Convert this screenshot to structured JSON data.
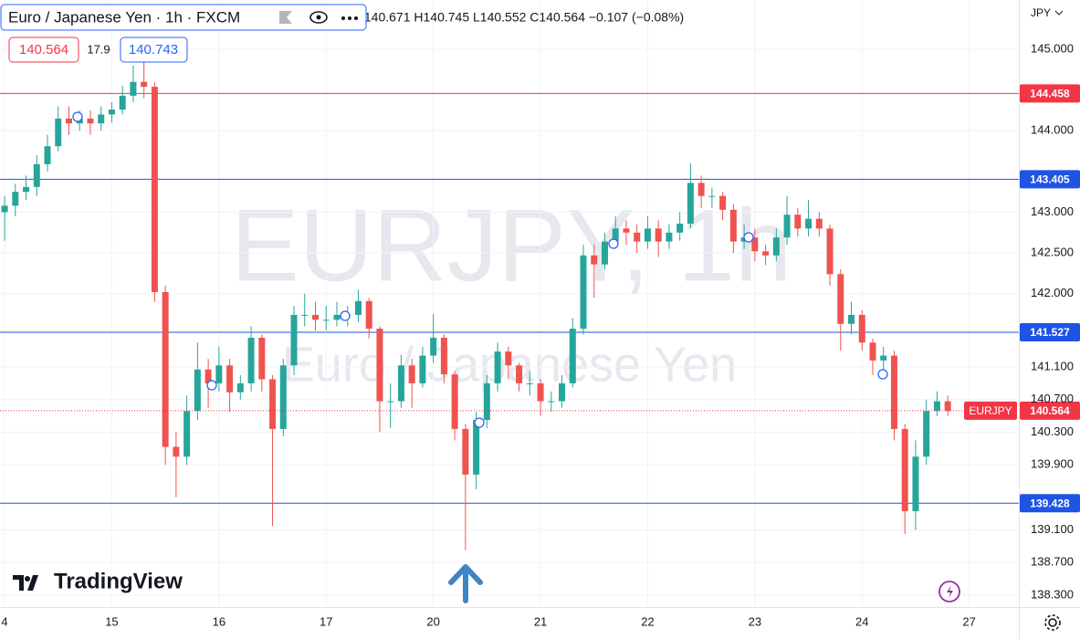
{
  "header": {
    "title": "Euro / Japanese Yen · 1h · FXCM",
    "ohlc": "O140.671 H140.745 L140.552 C140.564 −0.107 (−0.08%)",
    "sell": 140.564,
    "spread": 17.9,
    "buy": 140.743,
    "currency": "JPY",
    "watermark_symbol": "EURJPY, 1h",
    "watermark_name": "Euro / Japanese Yen",
    "logo": "TradingView"
  },
  "chart_data": {
    "type": "candlestick",
    "up_color": "#26a69a",
    "down_color": "#ef5350",
    "grid": true,
    "xlim": [
      -0.043,
      9.463
    ],
    "xticks": [
      {
        "value": 0,
        "label": "4"
      },
      {
        "value": 1,
        "label": "15"
      },
      {
        "value": 2,
        "label": "16"
      },
      {
        "value": 3,
        "label": "17"
      },
      {
        "value": 4,
        "label": "20"
      },
      {
        "value": 5,
        "label": "21"
      },
      {
        "value": 6,
        "label": "22"
      },
      {
        "value": 7,
        "label": "23"
      },
      {
        "value": 8,
        "label": "24"
      },
      {
        "value": 9,
        "label": "27"
      }
    ],
    "ylim": [
      138.154,
      145.605
    ],
    "yticks": [
      {
        "value": 145,
        "label": "145.000"
      },
      {
        "value": 144,
        "label": "144.000"
      },
      {
        "value": 143,
        "label": "143.000"
      },
      {
        "value": 142.5,
        "label": "142.500"
      },
      {
        "value": 142,
        "label": "142.000"
      },
      {
        "value": 141.1,
        "label": "141.100"
      },
      {
        "value": 140.7,
        "label": "140.700"
      },
      {
        "value": 140.3,
        "label": "140.300"
      },
      {
        "value": 139.9,
        "label": "139.900"
      },
      {
        "value": 139.1,
        "label": "139.100"
      },
      {
        "value": 138.7,
        "label": "138.700"
      },
      {
        "value": 138.3,
        "label": "138.300"
      }
    ],
    "levels": [
      {
        "value": 144.458,
        "color": "#f23645"
      },
      {
        "value": 143.405,
        "color": "#1e53e5"
      },
      {
        "value": 141.527,
        "color": "#1e53e5"
      },
      {
        "value": 139.428,
        "color": "#1e53e5"
      }
    ],
    "last_price": {
      "name": "EURJPY",
      "value": 140.564,
      "color": "#f23645"
    },
    "x": [
      0,
      0.1,
      0.2,
      0.3,
      0.4,
      0.5,
      0.6,
      0.7,
      0.8,
      0.9,
      1,
      1.1,
      1.2,
      1.3,
      1.4,
      1.5,
      1.6,
      1.7,
      1.8,
      1.9,
      2,
      2.1,
      2.2,
      2.3,
      2.4,
      2.5,
      2.6,
      2.7,
      2.8,
      2.9,
      3,
      3.1,
      3.2,
      3.3,
      3.4,
      3.5,
      3.6,
      3.7,
      3.8,
      3.9,
      4,
      4.1,
      4.2,
      4.3,
      4.4,
      4.5,
      4.6,
      4.7,
      4.8,
      4.9,
      5,
      5.1,
      5.2,
      5.3,
      5.4,
      5.5,
      5.6,
      5.7,
      5.8,
      5.9,
      6,
      6.1,
      6.2,
      6.3,
      6.4,
      6.5,
      6.6,
      6.7,
      6.8,
      6.9,
      7,
      7.1,
      7.2,
      7.3,
      7.4,
      7.5,
      7.6,
      7.7,
      7.8,
      7.9,
      8,
      8.1,
      8.2,
      8.3,
      8.4,
      8.5,
      8.6,
      8.7,
      8.8
    ],
    "open": [
      143.0,
      143.08,
      143.25,
      143.31,
      143.59,
      143.81,
      144.15,
      144.09,
      144.15,
      144.09,
      144.2,
      144.26,
      144.43,
      144.6,
      144.54,
      142.02,
      140.12,
      140.0,
      140.56,
      141.07,
      140.9,
      141.12,
      140.79,
      140.9,
      141.46,
      140.95,
      140.34,
      141.12,
      141.74,
      141.74,
      141.68,
      141.68,
      141.74,
      141.74,
      141.91,
      141.57,
      140.68,
      140.68,
      141.12,
      140.9,
      141.24,
      141.46,
      141.01,
      140.34,
      139.78,
      140.45,
      140.9,
      141.29,
      141.12,
      140.9,
      140.9,
      140.68,
      140.68,
      140.9,
      141.57,
      142.47,
      142.36,
      142.64,
      142.8,
      142.75,
      142.64,
      142.8,
      142.64,
      142.75,
      142.86,
      143.36,
      143.2,
      143.2,
      143.03,
      142.64,
      142.69,
      142.52,
      142.47,
      142.69,
      142.97,
      142.8,
      142.92,
      142.8,
      142.24,
      141.63,
      141.74,
      141.4,
      141.18,
      141.24,
      140.34,
      139.33,
      140.0,
      140.56,
      140.68
    ],
    "high": [
      143.2,
      143.35,
      143.45,
      143.7,
      143.95,
      144.3,
      144.3,
      144.25,
      144.25,
      144.3,
      144.35,
      144.55,
      144.8,
      144.85,
      144.6,
      142.1,
      140.3,
      140.75,
      141.4,
      141.2,
      141.35,
      141.2,
      141.0,
      141.6,
      141.5,
      141.0,
      141.2,
      141.85,
      142.0,
      141.9,
      141.85,
      141.9,
      141.85,
      142.05,
      141.95,
      141.6,
      140.9,
      141.25,
      141.2,
      141.35,
      141.75,
      141.5,
      141.05,
      140.4,
      140.55,
      141.0,
      141.4,
      141.35,
      141.15,
      141.05,
      140.95,
      140.8,
      141.0,
      141.7,
      142.6,
      142.6,
      142.75,
      142.95,
      142.9,
      142.85,
      142.95,
      142.9,
      142.85,
      143.0,
      143.6,
      143.45,
      143.3,
      143.25,
      143.1,
      142.85,
      142.8,
      142.6,
      142.8,
      143.2,
      143.05,
      143.15,
      143.0,
      142.85,
      142.3,
      141.9,
      141.8,
      141.45,
      141.35,
      141.3,
      140.4,
      140.2,
      140.7,
      140.8,
      140.75
    ],
    "low": [
      142.65,
      142.95,
      143.15,
      143.2,
      143.5,
      143.75,
      143.95,
      144.0,
      143.95,
      144.0,
      144.1,
      144.2,
      144.35,
      144.4,
      141.9,
      139.9,
      139.5,
      139.9,
      140.45,
      140.6,
      140.8,
      140.55,
      140.7,
      140.8,
      140.8,
      139.15,
      140.25,
      141.0,
      141.6,
      141.55,
      141.55,
      141.6,
      141.6,
      141.65,
      141.45,
      140.3,
      140.35,
      140.6,
      140.6,
      140.85,
      141.15,
      140.9,
      140.2,
      138.85,
      139.6,
      140.35,
      140.8,
      140.95,
      140.8,
      140.75,
      140.5,
      140.55,
      140.6,
      140.85,
      141.5,
      141.95,
      142.3,
      142.55,
      142.6,
      142.5,
      142.55,
      142.45,
      142.55,
      142.65,
      142.8,
      143.05,
      143.05,
      142.9,
      142.5,
      142.55,
      142.4,
      142.35,
      142.4,
      142.6,
      142.7,
      142.7,
      142.7,
      142.1,
      141.3,
      141.5,
      141.3,
      141.0,
      141.05,
      140.2,
      139.05,
      139.1,
      139.9,
      140.5,
      140.5
    ],
    "close": [
      143.08,
      143.25,
      143.31,
      143.59,
      143.81,
      144.15,
      144.09,
      144.15,
      144.09,
      144.2,
      144.26,
      144.43,
      144.6,
      144.54,
      142.02,
      140.12,
      140.0,
      140.56,
      141.07,
      140.9,
      141.12,
      140.79,
      140.9,
      141.46,
      140.95,
      140.34,
      141.12,
      141.74,
      141.74,
      141.68,
      141.68,
      141.74,
      141.74,
      141.91,
      141.57,
      140.68,
      140.68,
      141.12,
      140.9,
      141.24,
      141.46,
      141.01,
      140.34,
      139.78,
      140.45,
      140.9,
      141.29,
      141.12,
      140.9,
      140.9,
      140.68,
      140.68,
      140.9,
      141.57,
      142.47,
      142.36,
      142.64,
      142.8,
      142.75,
      142.64,
      142.8,
      142.64,
      142.75,
      142.86,
      143.36,
      143.2,
      143.2,
      143.03,
      142.64,
      142.69,
      142.52,
      142.47,
      142.69,
      142.97,
      142.8,
      142.92,
      142.8,
      142.24,
      141.63,
      141.74,
      141.4,
      141.18,
      141.24,
      140.34,
      139.33,
      140.0,
      140.56,
      140.68,
      140.56
    ]
  }
}
